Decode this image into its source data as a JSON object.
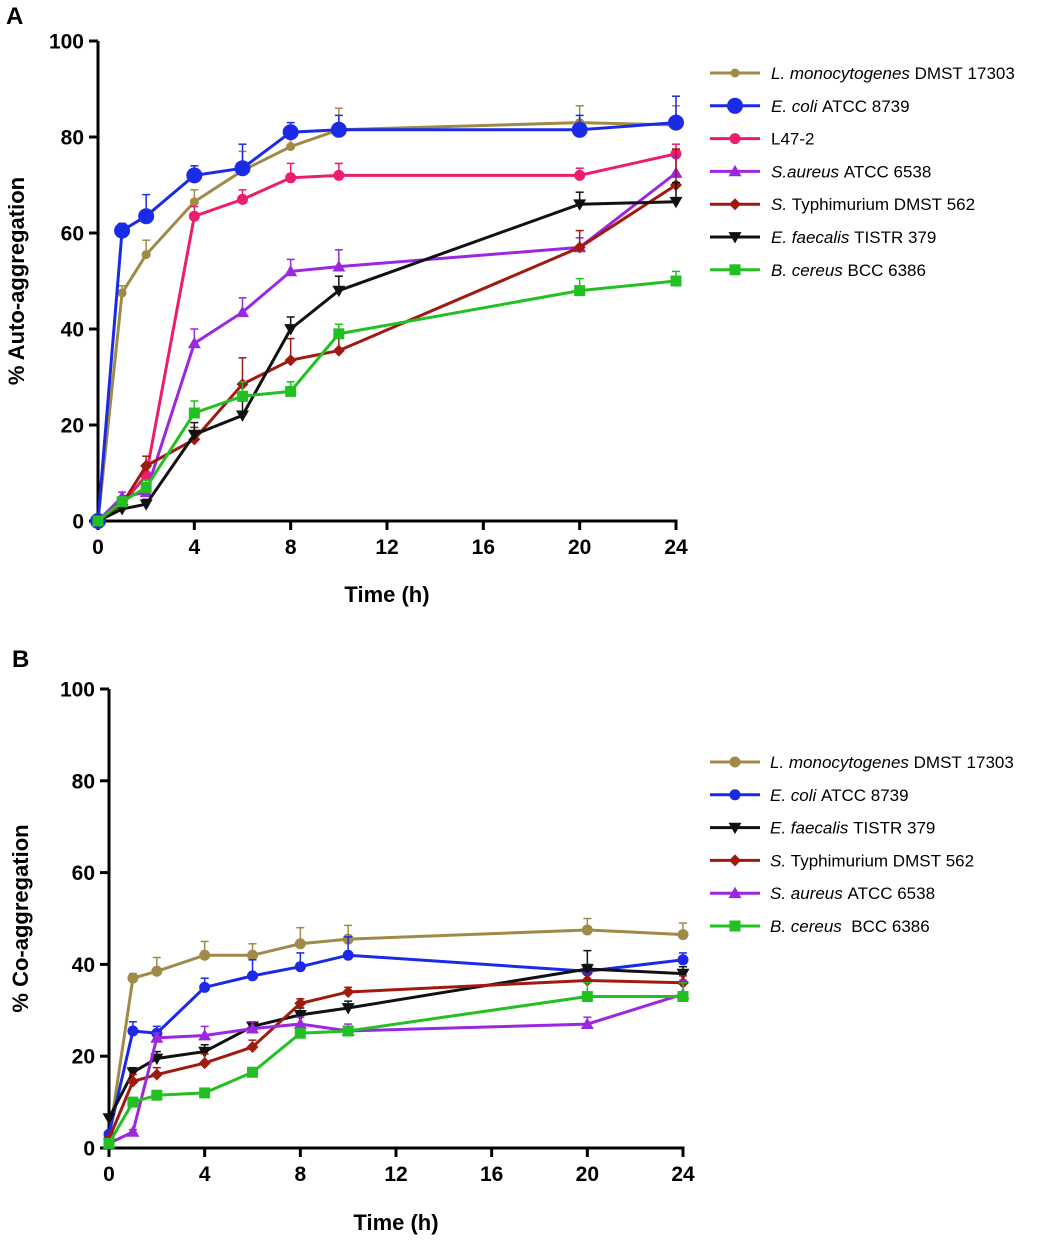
{
  "chart_data": [
    {
      "panel": "A",
      "type": "line",
      "xlabel": "Time (h)",
      "ylabel": "% Auto-aggregation",
      "xlim": [
        0,
        24
      ],
      "ylim": [
        0,
        100
      ],
      "xticks": [
        "0",
        "4",
        "8",
        "12",
        "16",
        "20",
        "24"
      ],
      "yticks": [
        "0",
        "20",
        "40",
        "60",
        "80",
        "100"
      ],
      "grid": false,
      "legend_position": "right",
      "x": [
        0,
        1,
        2,
        4,
        6,
        8,
        10,
        20,
        24
      ],
      "series": [
        {
          "name": "L. monocytogenes DMST 17303",
          "name_italic": "L. monocytogenes",
          "name_rest": " DMST 17303",
          "color": "#a08a48",
          "marker": "circle-small",
          "values": [
            0,
            47.5,
            55.5,
            66.5,
            73,
            78,
            81.5,
            83,
            82.5
          ],
          "errors": [
            0,
            1.5,
            3,
            2.5,
            4,
            2.5,
            4.5,
            3.5,
            4
          ]
        },
        {
          "name": "E. coli ATCC 8739",
          "name_italic": "E. coli",
          "name_rest": " ATCC 8739",
          "color": "#1a2ae6",
          "marker": "circle-large",
          "values": [
            0,
            60.5,
            63.5,
            72,
            73.5,
            81,
            81.5,
            81.5,
            83
          ],
          "errors": [
            0,
            1.5,
            4.5,
            2,
            5,
            2,
            3,
            3,
            5.5
          ]
        },
        {
          "name": "L47-2",
          "name_italic": "",
          "name_rest": "L47-2",
          "color": "#ec1c6e",
          "marker": "circle",
          "values": [
            0,
            3.5,
            9.5,
            63.5,
            67,
            71.5,
            72,
            72,
            76.5
          ],
          "errors": [
            0,
            1,
            1.5,
            2,
            2,
            3,
            2.5,
            1.5,
            2
          ]
        },
        {
          "name": "S.aureus ATCC 6538",
          "name_italic": "S.aureus",
          "name_rest": " ATCC 6538",
          "color": "#9c27e0",
          "marker": "triangle-up",
          "values": [
            0,
            5,
            6,
            37,
            43.5,
            52,
            53,
            57,
            72.5
          ],
          "errors": [
            0,
            1,
            1,
            3,
            3,
            2.5,
            3.5,
            2,
            3.5
          ]
        },
        {
          "name": "S. Typhimurium DMST 562",
          "name_italic": "S.",
          "name_rest": " Typhimurium DMST 562",
          "color": "#a01a10",
          "marker": "diamond",
          "values": [
            0,
            3.5,
            11.5,
            17,
            28.5,
            33.5,
            35.5,
            57,
            70
          ],
          "errors": [
            0,
            1,
            2,
            2.5,
            5.5,
            4.5,
            3.5,
            3.5,
            7.5
          ]
        },
        {
          "name": "E. faecalis TISTR 379",
          "name_italic": "E. faecalis",
          "name_rest": " TISTR 379",
          "color": "#111111",
          "marker": "triangle-down",
          "values": [
            0,
            2.5,
            3.5,
            18,
            22,
            40,
            48,
            66,
            66.5
          ],
          "errors": [
            0,
            1,
            1,
            2.5,
            3,
            2.5,
            3,
            2.5,
            4
          ]
        },
        {
          "name": "B. cereus BCC 6386",
          "name_italic": "B. cereus",
          "name_rest": " BCC 6386",
          "color": "#22c022",
          "marker": "square",
          "values": [
            0,
            4,
            7,
            22.5,
            26,
            27,
            39,
            48,
            50
          ],
          "errors": [
            0,
            1,
            1.5,
            2.5,
            3,
            2,
            2,
            2.5,
            2
          ]
        }
      ]
    },
    {
      "panel": "B",
      "type": "line",
      "xlabel": "Time (h)",
      "ylabel": "% Co-aggregation",
      "xlim": [
        0,
        24
      ],
      "ylim": [
        0,
        100
      ],
      "xticks": [
        "0",
        "4",
        "8",
        "12",
        "16",
        "20",
        "24"
      ],
      "yticks": [
        "0",
        "20",
        "40",
        "60",
        "80",
        "100"
      ],
      "grid": false,
      "legend_position": "right",
      "x": [
        0,
        1,
        2,
        4,
        6,
        8,
        10,
        20,
        24
      ],
      "series": [
        {
          "name": "L. monocytogenes DMST 17303",
          "name_italic": "L. monocytogenes",
          "name_rest": " DMST 17303",
          "color": "#a08a48",
          "marker": "circle",
          "values": [
            2,
            37,
            38.5,
            42,
            42,
            44.5,
            45.5,
            47.5,
            46.5
          ],
          "errors": [
            0,
            1,
            3,
            3,
            2.5,
            3.5,
            3,
            2.5,
            2.5
          ]
        },
        {
          "name": "E. coli ATCC 8739",
          "name_italic": "E. coli",
          "name_rest": " ATCC 8739",
          "color": "#1a2ae6",
          "marker": "circle",
          "values": [
            3,
            25.5,
            25,
            35,
            37.5,
            39.5,
            42,
            38.5,
            41
          ],
          "errors": [
            0,
            2,
            1.5,
            2,
            3.5,
            3,
            4,
            1.5,
            1.5
          ]
        },
        {
          "name": "E. faecalis TISTR 379",
          "name_italic": "E. faecalis",
          "name_rest": " TISTR 379",
          "color": "#111111",
          "marker": "triangle-down",
          "values": [
            6.5,
            16.5,
            19.5,
            21,
            26.5,
            29,
            30.5,
            39,
            38
          ],
          "errors": [
            0,
            1,
            1.5,
            1.5,
            1,
            1.5,
            1.5,
            4,
            1.5
          ]
        },
        {
          "name": "S. Typhimurium DMST 562",
          "name_italic": "S.",
          "name_rest": " Typhimurium DMST 562",
          "color": "#a01a10",
          "marker": "diamond",
          "values": [
            2,
            14.5,
            16,
            18.5,
            22,
            31.5,
            34,
            36.5,
            36
          ],
          "errors": [
            0,
            1.5,
            1.5,
            2,
            1.5,
            1,
            1,
            1.5,
            1.5
          ]
        },
        {
          "name": "S. aureus ATCC 6538",
          "name_italic": "S. aureus",
          "name_rest": " ATCC 6538",
          "color": "#9c27e0",
          "marker": "triangle-up",
          "values": [
            1,
            3.5,
            24,
            24.5,
            26,
            27,
            25.5,
            27,
            33.5
          ],
          "errors": [
            0,
            0.5,
            1,
            2,
            1.5,
            1.5,
            1.5,
            1.5,
            3
          ]
        },
        {
          "name": "B. cereus  BCC 6386",
          "name_italic": "B. cereus",
          "name_rest": "  BCC 6386",
          "color": "#22c022",
          "marker": "square",
          "values": [
            1,
            10,
            11.5,
            12,
            16.5,
            25,
            25.5,
            33,
            33
          ],
          "errors": [
            0,
            1,
            1,
            1,
            1,
            1,
            1,
            3,
            3
          ]
        }
      ]
    }
  ]
}
